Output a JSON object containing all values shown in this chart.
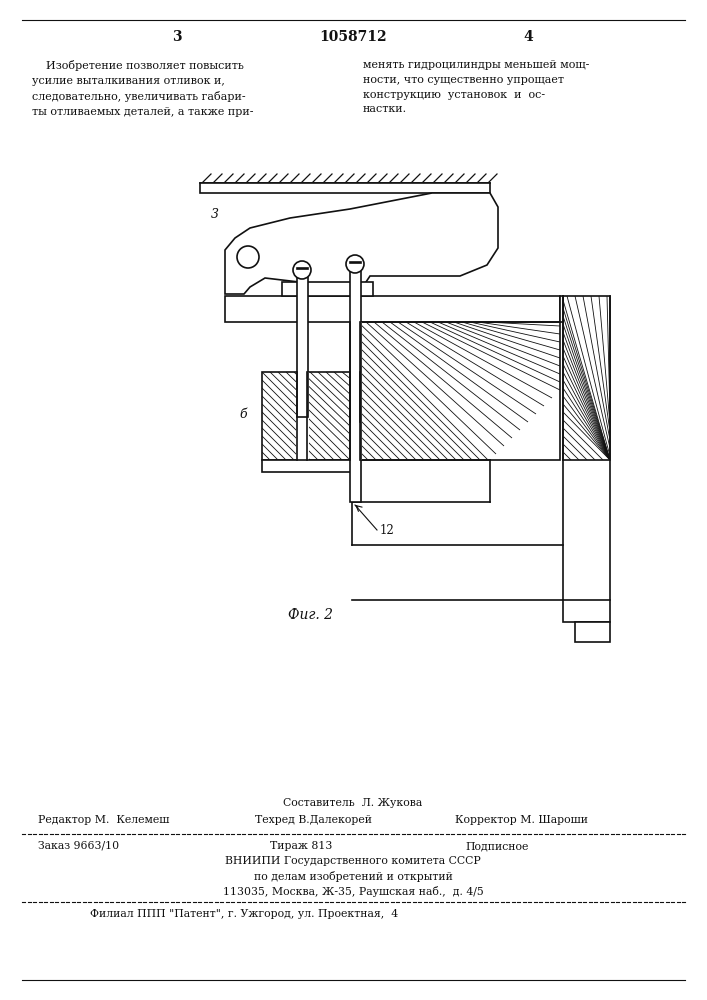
{
  "patent_number": "1058712",
  "page_left": "3",
  "page_right": "4",
  "text_col1": "    Изобретение позволяет повысить\nусилие выталкивания отливок и,\nследовательно, увеличивать габари-\nты отливаемых деталей, а также при-",
  "text_col2": "менять гидроцилиндры меньшей мощ-\nности, что существенно упрощает\nконструкцию  установок  и  ос-\nнастки.",
  "fig_caption": "Фиг. 2",
  "lbl_3": "3",
  "lbl_6": "б",
  "lbl_12": "12",
  "footer_sostavitel": "Составитель  Л. Жукова",
  "footer_editor": "Редактор М.  Келемеш",
  "footer_tekhred": "Техред В.Далекорей",
  "footer_korrektor": "Корректор М. Шароши",
  "footer_zakaz": "Заказ 9663/10",
  "footer_tirazh": "Тираж 813",
  "footer_podp": "Подписное",
  "footer_org1": "ВНИИПИ Государственного комитета СССР",
  "footer_org2": "по делам изобретений и открытий",
  "footer_addr": "113035, Москва, Ж-35, Раушская наб.,  д. 4/5",
  "footer_branch": "Филиал ППП \"Патент\", г. Ужгород, ул. Проектная,  4",
  "lw": 1.2,
  "lc": "#111111"
}
